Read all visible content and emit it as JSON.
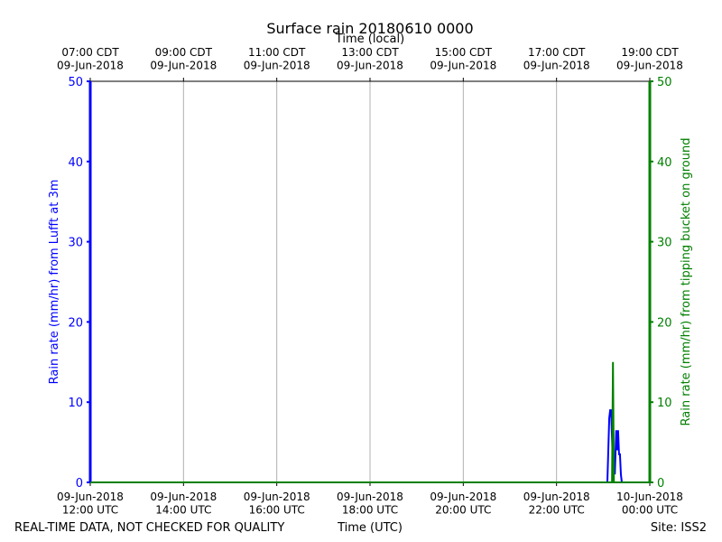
{
  "chart_data": {
    "type": "line",
    "title": "Surface rain 20180610 0000",
    "top_xlabel": "Time (local)",
    "xlabel": "Time (UTC)",
    "ylabel": "Rain rate (mm/hr) from Lufft at 3m",
    "y2label": "Rain rate (mm/hr) from tipping bucket on ground",
    "footer_left": "REAL-TIME DATA, NOT CHECKED FOR QUALITY",
    "footer_right": "Site: ISS2",
    "xlim": [
      12,
      24
    ],
    "xticks": [
      {
        "value": 12,
        "label": "09-Jun-2018\n12:00 UTC"
      },
      {
        "value": 14,
        "label": "09-Jun-2018\n14:00 UTC"
      },
      {
        "value": 16,
        "label": "09-Jun-2018\n16:00 UTC"
      },
      {
        "value": 18,
        "label": "09-Jun-2018\n18:00 UTC"
      },
      {
        "value": 20,
        "label": "09-Jun-2018\n20:00 UTC"
      },
      {
        "value": 22,
        "label": "09-Jun-2018\n22:00 UTC"
      },
      {
        "value": 24,
        "label": "10-Jun-2018\n00:00 UTC"
      }
    ],
    "top_xticks": [
      {
        "value": 12,
        "label": "07:00 CDT\n09-Jun-2018"
      },
      {
        "value": 14,
        "label": "09:00 CDT\n09-Jun-2018"
      },
      {
        "value": 16,
        "label": "11:00 CDT\n09-Jun-2018"
      },
      {
        "value": 18,
        "label": "13:00 CDT\n09-Jun-2018"
      },
      {
        "value": 20,
        "label": "15:00 CDT\n09-Jun-2018"
      },
      {
        "value": 22,
        "label": "17:00 CDT\n09-Jun-2018"
      },
      {
        "value": 24,
        "label": "19:00 CDT\n09-Jun-2018"
      }
    ],
    "ylim": [
      0,
      50
    ],
    "yticks": [
      0,
      10,
      20,
      30,
      40,
      50
    ],
    "ycolor": "#0000ff",
    "y2lim": [
      0,
      50
    ],
    "y2ticks": [
      0,
      10,
      20,
      30,
      40,
      50
    ],
    "y2color": "#008000",
    "grid": true,
    "series": [
      {
        "name": "Lufft",
        "color": "#0000ff",
        "x": [
          12,
          23.09,
          23.13,
          23.15,
          23.17,
          23.21,
          23.25,
          23.28,
          23.3,
          23.32,
          23.34,
          23.36,
          23.38,
          23.4,
          24
        ],
        "values": [
          0,
          0,
          8,
          9,
          9,
          2,
          1,
          6.5,
          4,
          6.5,
          3.5,
          3.5,
          1,
          0,
          0
        ]
      },
      {
        "name": "Tipping bucket",
        "color": "#008000",
        "axis": "y2",
        "x": [
          12,
          23.19,
          23.21,
          23.23,
          24
        ],
        "values": [
          0,
          0,
          15,
          0,
          0
        ]
      }
    ]
  }
}
